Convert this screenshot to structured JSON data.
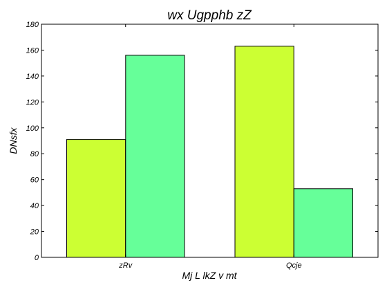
{
  "chart_data": {
    "type": "bar",
    "title": "wx Ugpphb zZ",
    "xlabel": "Mj L  lkZ v mt",
    "ylabel": "DNsfx",
    "categories": [
      "zRv",
      "Qcje"
    ],
    "series": [
      {
        "color": "#ccff33",
        "values": [
          91,
          163
        ]
      },
      {
        "color": "#66ff99",
        "values": [
          156,
          53
        ]
      }
    ],
    "ylim": [
      0,
      180
    ],
    "yticks": [
      0,
      20,
      40,
      60,
      80,
      100,
      120,
      140,
      160,
      180
    ],
    "grid": false,
    "legend": "none"
  }
}
